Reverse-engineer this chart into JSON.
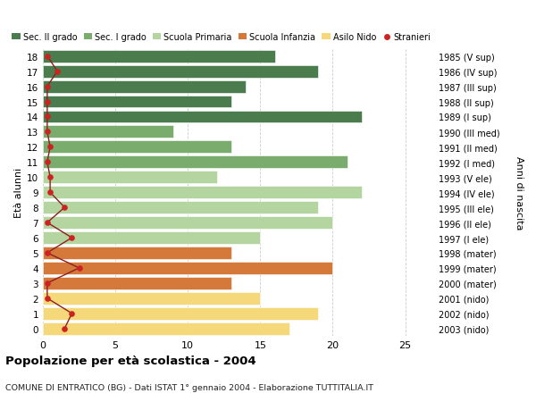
{
  "ages": [
    18,
    17,
    16,
    15,
    14,
    13,
    12,
    11,
    10,
    9,
    8,
    7,
    6,
    5,
    4,
    3,
    2,
    1,
    0
  ],
  "years": [
    "1985 (V sup)",
    "1986 (IV sup)",
    "1987 (III sup)",
    "1988 (II sup)",
    "1989 (I sup)",
    "1990 (III med)",
    "1991 (II med)",
    "1992 (I med)",
    "1993 (V ele)",
    "1994 (IV ele)",
    "1995 (III ele)",
    "1996 (II ele)",
    "1997 (I ele)",
    "1998 (mater)",
    "1999 (mater)",
    "2000 (mater)",
    "2001 (nido)",
    "2002 (nido)",
    "2003 (nido)"
  ],
  "values": [
    16,
    19,
    14,
    13,
    22,
    9,
    13,
    21,
    12,
    22,
    19,
    20,
    15,
    13,
    20,
    13,
    15,
    19,
    17
  ],
  "stranieri": [
    0.3,
    1.0,
    0.3,
    0.3,
    0.3,
    0.3,
    0.5,
    0.3,
    0.5,
    0.5,
    1.5,
    0.3,
    2.0,
    0.3,
    2.5,
    0.3,
    0.3,
    2.0,
    1.5
  ],
  "bar_colors": [
    "#4a7c4e",
    "#4a7c4e",
    "#4a7c4e",
    "#4a7c4e",
    "#4a7c4e",
    "#7aac6e",
    "#7aac6e",
    "#7aac6e",
    "#b5d5a0",
    "#b5d5a0",
    "#b5d5a0",
    "#b5d5a0",
    "#b5d5a0",
    "#d4793a",
    "#d4793a",
    "#d4793a",
    "#f5d87a",
    "#f5d87a",
    "#f5d87a"
  ],
  "legend_labels": [
    "Sec. II grado",
    "Sec. I grado",
    "Scuola Primaria",
    "Scuola Infanzia",
    "Asilo Nido",
    "Stranieri"
  ],
  "legend_colors": [
    "#4a7c4e",
    "#7aac6e",
    "#b5d5a0",
    "#d4793a",
    "#f5d87a",
    "#cc2222"
  ],
  "title": "Popolazione per età scolastica - 2004",
  "subtitle": "COMUNE DI ENTRATICO (BG) - Dati ISTAT 1° gennaio 2004 - Elaborazione TUTTITALIA.IT",
  "ylabel_left": "Età alunni",
  "ylabel_right": "Anni di nascita",
  "xlim": [
    0,
    27
  ],
  "xticks": [
    0,
    5,
    10,
    15,
    20,
    25
  ],
  "background_color": "#ffffff",
  "grid_color": "#cccccc",
  "stranieri_line_color": "#8b2020",
  "stranieri_dot_color": "#cc2222",
  "bar_height": 0.82
}
